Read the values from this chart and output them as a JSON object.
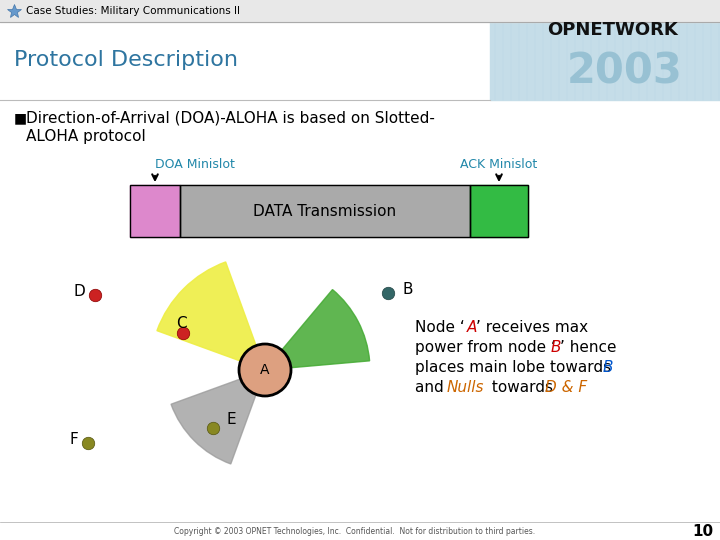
{
  "title_bar_text": "Case Studies: Military Communications II",
  "title_bar_bg": "#e8e8e8",
  "title_bar_fg": "#000000",
  "slide_title": "Protocol Description",
  "slide_title_color": "#2e75a0",
  "bullet_line1": "  Direction-of-Arrival (DOA)-ALOHA is based on Slotted-",
  "bullet_line2": "  ALOHA protocol",
  "bullet_marker": "■",
  "doa_label": "DOA Minislot",
  "ack_label": "ACK Minislot",
  "data_label": "DATA Transmission",
  "doa_color": "#dd88cc",
  "data_color": "#aaaaaa",
  "ack_color": "#33bb44",
  "doa_label_color": "#2288aa",
  "ack_label_color": "#2288aa",
  "bg_color": "#ffffff",
  "topright_bg": "#c5dde8",
  "opnetwork_text": "OPNETWORK",
  "opnetwork_color": "#111111",
  "year_text": "2003",
  "year_color": "#90bdd0",
  "page_number": "10",
  "footer_text": "Copyright © 2003 OPNET Technologies, Inc.  Confidential.  Not for distribution to third parties.",
  "node_a_color": "#dda080",
  "node_b_color": "#336666",
  "node_c_color": "#cc2222",
  "node_d_color": "#cc2222",
  "node_e_color": "#888822",
  "node_f_color": "#888822",
  "yellow_lobe_color": "#eeee44",
  "green_lobe_color": "#44aa33",
  "grey_lobe_color": "#999999"
}
